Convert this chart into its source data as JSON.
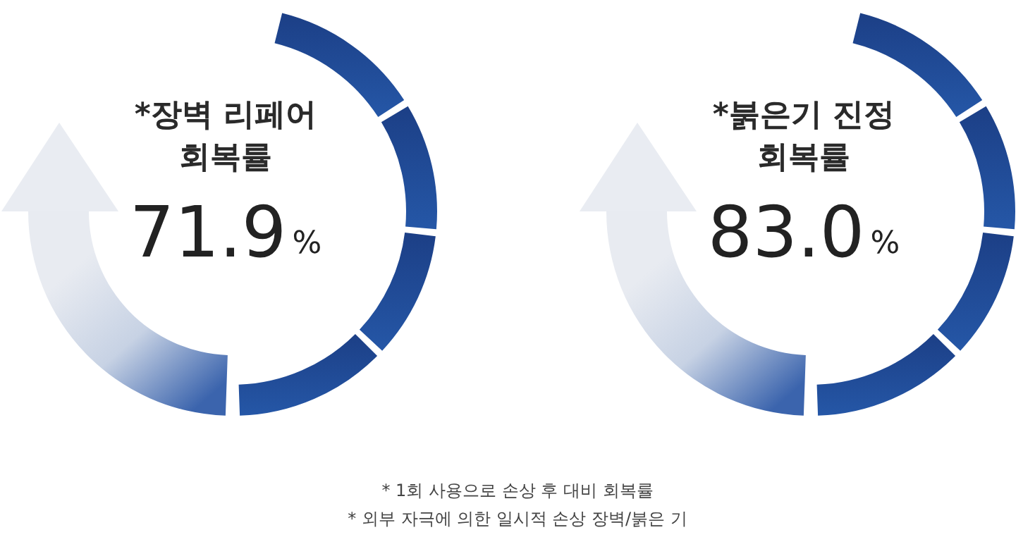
{
  "chart_data": [
    {
      "type": "other",
      "title": "*장벽 리페어\n회복률",
      "values": [
        71.9
      ],
      "value_labels": [
        "71.9%"
      ]
    },
    {
      "type": "other",
      "title": "*붉은기 진정\n회복률",
      "values": [
        83.0
      ],
      "value_labels": [
        "83.0%"
      ],
      "annotations": [
        "* 1회 사용으로 손상 후 대비 회복률",
        "* 외부 자극에 의한 일시적 손상 장벽/붉은 기"
      ]
    }
  ]
}
